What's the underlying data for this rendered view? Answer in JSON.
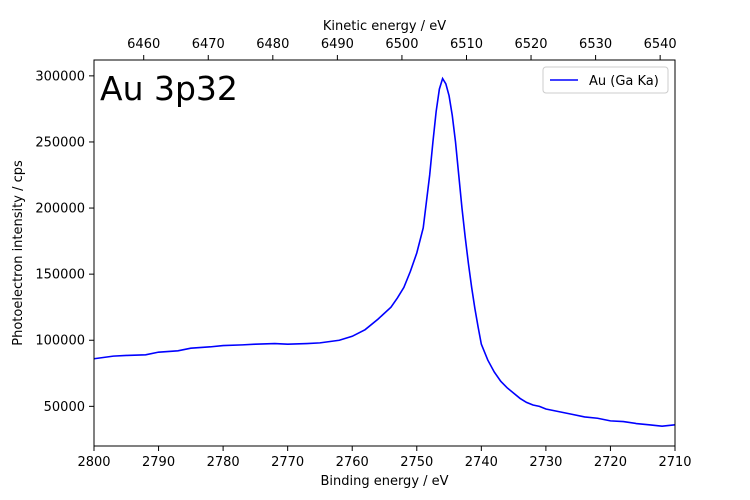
{
  "chart_data": {
    "type": "line",
    "title": "",
    "annotation": "Au 3p32",
    "xlabel": "Binding energy / eV",
    "x2label": "Kinetic energy / eV",
    "ylabel": "Photoelectron intensity / cps",
    "xlim": [
      2800,
      2710
    ],
    "x2lim": [
      6452.3,
      6542.3
    ],
    "ylim": [
      20000,
      312000
    ],
    "xticks": [
      2800,
      2790,
      2780,
      2770,
      2760,
      2750,
      2740,
      2730,
      2720,
      2710
    ],
    "x2ticks": [
      6460,
      6470,
      6480,
      6490,
      6500,
      6510,
      6520,
      6530,
      6540
    ],
    "yticks": [
      50000,
      100000,
      150000,
      200000,
      250000,
      300000
    ],
    "legend_position": "upper right",
    "grid": false,
    "series": [
      {
        "name": "Au (Ga Ka)",
        "color": "#0000ff",
        "x": [
          2800,
          2797,
          2795,
          2792,
          2790,
          2787,
          2785,
          2782,
          2780,
          2777,
          2775,
          2772,
          2770,
          2767,
          2765,
          2762,
          2760,
          2758,
          2756,
          2754,
          2753,
          2752,
          2751,
          2750,
          2749,
          2748.5,
          2748,
          2747.5,
          2747,
          2746.5,
          2746,
          2745.5,
          2745,
          2744.5,
          2744,
          2743.5,
          2743,
          2742.5,
          2742,
          2741.5,
          2741,
          2740.5,
          2740,
          2739,
          2738,
          2737,
          2736,
          2735,
          2734,
          2733,
          2732,
          2731,
          2730,
          2728,
          2726,
          2724,
          2722,
          2720,
          2718,
          2716,
          2714,
          2712,
          2710
        ],
        "y": [
          86000,
          88000,
          88500,
          89000,
          91000,
          92000,
          94000,
          95000,
          96000,
          96500,
          97000,
          97500,
          97000,
          97500,
          98000,
          100000,
          103000,
          108000,
          116000,
          125000,
          132000,
          140000,
          152000,
          166000,
          185000,
          205000,
          225000,
          250000,
          273000,
          290000,
          298000,
          294000,
          285000,
          270000,
          250000,
          225000,
          200000,
          178000,
          158000,
          140000,
          124000,
          110000,
          97000,
          85000,
          76000,
          69000,
          64000,
          60000,
          56000,
          53000,
          51000,
          50000,
          48000,
          46000,
          44000,
          42000,
          41000,
          39000,
          38500,
          37000,
          36000,
          35000,
          36000
        ]
      }
    ]
  }
}
